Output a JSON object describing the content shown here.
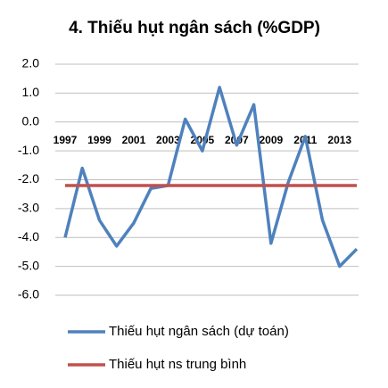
{
  "chart_data": {
    "type": "line",
    "title": "4. Thiếu hụt ngân sách (%GDP)",
    "categories": [
      "1997",
      null,
      "1999",
      null,
      "2001",
      null,
      "2003",
      null,
      "2005",
      null,
      "2007",
      null,
      "2009",
      null,
      "2011",
      null,
      "2013",
      null
    ],
    "series": [
      {
        "name": "Thiếu hụt ngân sách (dự toán)",
        "color": "#4f81bd",
        "values": [
          -4.0,
          -1.6,
          -3.4,
          -4.3,
          -3.5,
          -2.3,
          -2.2,
          0.1,
          -1.0,
          1.2,
          -0.8,
          0.6,
          -4.2,
          -2.1,
          -0.5,
          -3.4,
          -5.0,
          -4.4
        ]
      },
      {
        "name": "Thiếu hụt ns trung bình",
        "color": "#c0504d",
        "values": [
          -2.2,
          -2.2,
          -2.2,
          -2.2,
          -2.2,
          -2.2,
          -2.2,
          -2.2,
          -2.2,
          -2.2,
          -2.2,
          -2.2,
          -2.2,
          -2.2,
          -2.2,
          -2.2,
          -2.2,
          -2.2
        ]
      }
    ],
    "ylim": [
      -6,
      2
    ],
    "yticks": [
      {
        "value": 2,
        "label": "2.0"
      },
      {
        "value": 1,
        "label": "1.0"
      },
      {
        "value": 0,
        "label": "0.0"
      },
      {
        "value": -1,
        "label": "-1.0"
      },
      {
        "value": -2,
        "label": "-2.0"
      },
      {
        "value": -3,
        "label": "-3.0"
      },
      {
        "value": -4,
        "label": "-4.0"
      },
      {
        "value": -5,
        "label": "-5.0"
      },
      {
        "value": -6,
        "label": "-6.0"
      }
    ],
    "grid": true
  }
}
